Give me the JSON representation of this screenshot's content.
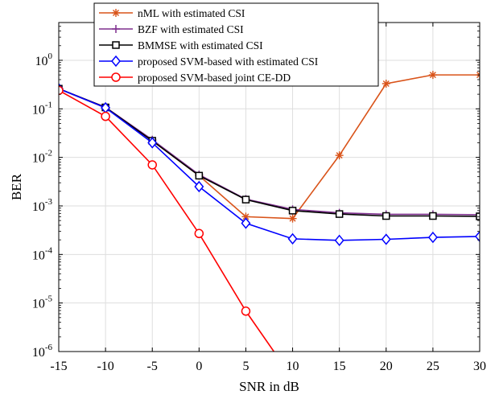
{
  "chart_data": {
    "type": "line",
    "xlabel": "SNR in dB",
    "ylabel": "BER",
    "x_ticks": [
      "-15",
      "-10",
      "-5",
      "0",
      "5",
      "10",
      "15",
      "20",
      "25",
      "30"
    ],
    "y_ticks": [
      {
        "base": "10",
        "exp": "0",
        "value": 1
      },
      {
        "base": "10",
        "exp": "-1",
        "value": 0.1
      },
      {
        "base": "10",
        "exp": "-2",
        "value": 0.01
      },
      {
        "base": "10",
        "exp": "-3",
        "value": 0.001
      },
      {
        "base": "10",
        "exp": "-4",
        "value": 0.0001
      },
      {
        "base": "10",
        "exp": "-5",
        "value": 1e-05
      },
      {
        "base": "10",
        "exp": "-6",
        "value": 1e-06
      }
    ],
    "xlim": [
      -15,
      30
    ],
    "ylim": [
      1e-06,
      6
    ],
    "yscale": "log",
    "grid": true,
    "legend_position": "top",
    "series": [
      {
        "name": "nML with estimated CSI",
        "color": "#D95319",
        "marker": "asterisk",
        "x": [
          -15,
          -10,
          -5,
          0,
          5,
          10,
          15,
          20,
          25,
          30
        ],
        "y": [
          0.26,
          0.105,
          0.022,
          0.0042,
          0.0006,
          0.00055,
          0.011,
          0.33,
          0.5,
          0.5
        ]
      },
      {
        "name": "BZF with estimated CSI",
        "color": "#7E2F8E",
        "marker": "plus",
        "x": [
          -15,
          -10,
          -5,
          0,
          5,
          10,
          15,
          20,
          25,
          30
        ],
        "y": [
          0.26,
          0.108,
          0.023,
          0.0044,
          0.00138,
          0.00085,
          0.00072,
          0.00067,
          0.00067,
          0.00066
        ]
      },
      {
        "name": "BMMSE with estimated CSI",
        "color": "#000000",
        "marker": "square",
        "x": [
          -15,
          -10,
          -5,
          0,
          5,
          10,
          15,
          20,
          25,
          30
        ],
        "y": [
          0.26,
          0.107,
          0.022,
          0.0042,
          0.00135,
          0.0008,
          0.00068,
          0.00062,
          0.00062,
          0.00061
        ]
      },
      {
        "name": "proposed SVM-based with estimated CSI",
        "color": "#0000FF",
        "marker": "diamond",
        "x": [
          -15,
          -10,
          -5,
          0,
          5,
          10,
          15,
          20,
          25,
          30
        ],
        "y": [
          0.26,
          0.105,
          0.02,
          0.0025,
          0.00044,
          0.00021,
          0.000195,
          0.000205,
          0.000225,
          0.000235
        ]
      },
      {
        "name": "proposed SVM-based joint CE-DD",
        "color": "#FF0000",
        "marker": "circle",
        "x": [
          -15,
          -10,
          -5,
          0,
          5,
          8
        ],
        "y": [
          0.24,
          0.07,
          0.007,
          0.00027,
          6.8e-06,
          1e-06
        ]
      }
    ]
  }
}
